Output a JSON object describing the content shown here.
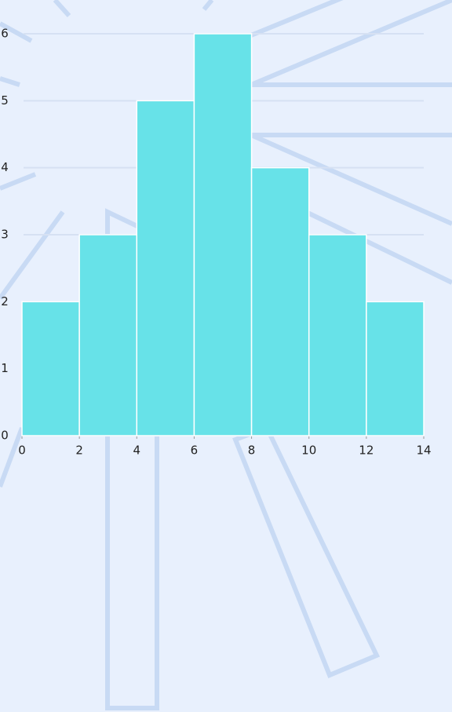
{
  "chart_data": {
    "type": "histogram",
    "bins": [
      0,
      2,
      4,
      6,
      8,
      10,
      12,
      14
    ],
    "values": [
      2,
      3,
      5,
      6,
      4,
      3,
      2
    ],
    "color": "#67e2e8",
    "xlim": [
      0,
      14
    ],
    "xticks": [
      0,
      2,
      4,
      6,
      8,
      10,
      12,
      14
    ],
    "ylim": [
      0,
      6
    ],
    "yticks": [
      0,
      1,
      2,
      3,
      4,
      5,
      6
    ],
    "grid": true
  }
}
